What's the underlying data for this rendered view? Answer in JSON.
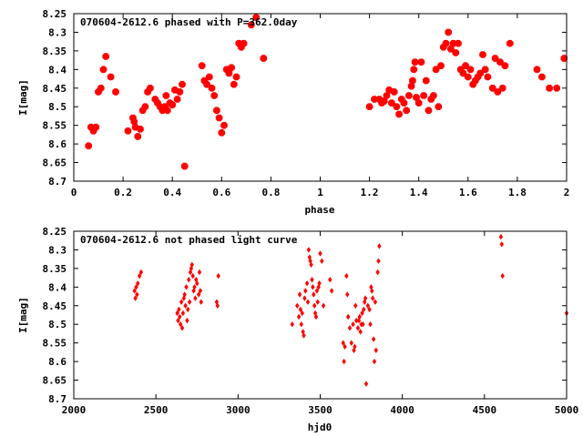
{
  "chart_data": [
    {
      "type": "scatter",
      "title": "070604-2612.6 phased with P=362.0day",
      "xlabel": "phase",
      "ylabel": "I[mag]",
      "xlim": [
        0,
        2
      ],
      "ylim": [
        8.7,
        8.25
      ],
      "y_inverted": true,
      "grid": false,
      "marker_color": "#ff0000",
      "marker_shape": "octagon",
      "xticks": [
        0,
        0.2,
        0.4,
        0.6,
        0.8,
        1,
        1.2,
        1.4,
        1.6,
        1.8,
        2
      ],
      "xtick_labels": [
        "0",
        "0.2",
        "0.4",
        "0.6",
        "0.8",
        "1",
        "1.2",
        "1.4",
        "1.6",
        "1.8",
        "2"
      ],
      "yticks": [
        8.25,
        8.3,
        8.35,
        8.4,
        8.45,
        8.5,
        8.55,
        8.6,
        8.65,
        8.7
      ],
      "ytick_labels": [
        "8.25",
        "8.3",
        "8.35",
        "8.4",
        "8.45",
        "8.5",
        "8.55",
        "8.6",
        "8.65",
        "8.7"
      ],
      "points": [
        [
          0.06,
          8.605
        ],
        [
          0.07,
          8.555
        ],
        [
          0.08,
          8.565
        ],
        [
          0.09,
          8.555
        ],
        [
          0.1,
          8.46
        ],
        [
          0.11,
          8.45
        ],
        [
          0.12,
          8.4
        ],
        [
          0.13,
          8.365
        ],
        [
          0.15,
          8.42
        ],
        [
          0.17,
          8.46
        ],
        [
          0.22,
          8.565
        ],
        [
          0.24,
          8.53
        ],
        [
          0.245,
          8.54
        ],
        [
          0.25,
          8.555
        ],
        [
          0.26,
          8.58
        ],
        [
          0.27,
          8.56
        ],
        [
          0.28,
          8.51
        ],
        [
          0.29,
          8.5
        ],
        [
          0.3,
          8.46
        ],
        [
          0.31,
          8.45
        ],
        [
          0.33,
          8.48
        ],
        [
          0.34,
          8.49
        ],
        [
          0.35,
          8.5
        ],
        [
          0.36,
          8.51
        ],
        [
          0.37,
          8.5
        ],
        [
          0.375,
          8.47
        ],
        [
          0.38,
          8.51
        ],
        [
          0.39,
          8.49
        ],
        [
          0.4,
          8.495
        ],
        [
          0.41,
          8.455
        ],
        [
          0.42,
          8.48
        ],
        [
          0.43,
          8.46
        ],
        [
          0.44,
          8.44
        ],
        [
          0.45,
          8.66
        ],
        [
          0.52,
          8.39
        ],
        [
          0.53,
          8.43
        ],
        [
          0.54,
          8.44
        ],
        [
          0.55,
          8.42
        ],
        [
          0.56,
          8.45
        ],
        [
          0.57,
          8.47
        ],
        [
          0.58,
          8.51
        ],
        [
          0.59,
          8.53
        ],
        [
          0.6,
          8.57
        ],
        [
          0.61,
          8.55
        ],
        [
          0.62,
          8.4
        ],
        [
          0.63,
          8.41
        ],
        [
          0.64,
          8.395
        ],
        [
          0.65,
          8.44
        ],
        [
          0.66,
          8.42
        ],
        [
          0.67,
          8.33
        ],
        [
          0.68,
          8.34
        ],
        [
          0.69,
          8.33
        ],
        [
          0.72,
          8.28
        ],
        [
          0.74,
          8.26
        ],
        [
          0.77,
          8.37
        ],
        [
          1.2,
          8.5
        ],
        [
          1.22,
          8.48
        ],
        [
          1.24,
          8.48
        ],
        [
          1.25,
          8.49
        ],
        [
          1.26,
          8.485
        ],
        [
          1.27,
          8.47
        ],
        [
          1.28,
          8.455
        ],
        [
          1.29,
          8.49
        ],
        [
          1.3,
          8.46
        ],
        [
          1.31,
          8.5
        ],
        [
          1.32,
          8.52
        ],
        [
          1.33,
          8.48
        ],
        [
          1.34,
          8.49
        ],
        [
          1.35,
          8.51
        ],
        [
          1.36,
          8.47
        ],
        [
          1.37,
          8.445
        ],
        [
          1.375,
          8.43
        ],
        [
          1.38,
          8.4
        ],
        [
          1.385,
          8.38
        ],
        [
          1.39,
          8.475
        ],
        [
          1.4,
          8.49
        ],
        [
          1.41,
          8.38
        ],
        [
          1.42,
          8.47
        ],
        [
          1.43,
          8.43
        ],
        [
          1.44,
          8.51
        ],
        [
          1.45,
          8.48
        ],
        [
          1.46,
          8.47
        ],
        [
          1.47,
          8.4
        ],
        [
          1.48,
          8.5
        ],
        [
          1.49,
          8.39
        ],
        [
          1.5,
          8.34
        ],
        [
          1.51,
          8.33
        ],
        [
          1.52,
          8.3
        ],
        [
          1.53,
          8.345
        ],
        [
          1.54,
          8.33
        ],
        [
          1.55,
          8.355
        ],
        [
          1.56,
          8.33
        ],
        [
          1.57,
          8.4
        ],
        [
          1.58,
          8.41
        ],
        [
          1.59,
          8.39
        ],
        [
          1.6,
          8.42
        ],
        [
          1.61,
          8.4
        ],
        [
          1.62,
          8.44
        ],
        [
          1.63,
          8.43
        ],
        [
          1.64,
          8.42
        ],
        [
          1.65,
          8.41
        ],
        [
          1.66,
          8.36
        ],
        [
          1.67,
          8.4
        ],
        [
          1.68,
          8.42
        ],
        [
          1.7,
          8.45
        ],
        [
          1.71,
          8.37
        ],
        [
          1.72,
          8.46
        ],
        [
          1.73,
          8.38
        ],
        [
          1.74,
          8.45
        ],
        [
          1.75,
          8.39
        ],
        [
          1.77,
          8.33
        ],
        [
          1.88,
          8.4
        ],
        [
          1.9,
          8.42
        ],
        [
          1.93,
          8.45
        ],
        [
          1.96,
          8.45
        ],
        [
          1.99,
          8.37
        ]
      ]
    },
    {
      "type": "scatter",
      "title": "070604-2612.6 not phased light curve",
      "xlabel": "hjd0",
      "ylabel": "I[mag]",
      "xlim": [
        2000,
        5000
      ],
      "ylim": [
        8.7,
        8.25
      ],
      "y_inverted": true,
      "grid": false,
      "marker_color": "#ff0000",
      "marker_shape": "diamond",
      "xticks": [
        2000,
        2500,
        3000,
        3500,
        4000,
        4500,
        5000
      ],
      "xtick_labels": [
        "2000",
        "2500",
        "3000",
        "3500",
        "4000",
        "4500",
        "5000"
      ],
      "yticks": [
        8.25,
        8.3,
        8.35,
        8.4,
        8.45,
        8.5,
        8.55,
        8.6,
        8.65,
        8.7
      ],
      "ytick_labels": [
        "8.25",
        "8.3",
        "8.35",
        "8.4",
        "8.45",
        "8.5",
        "8.55",
        "8.6",
        "8.65",
        "8.7"
      ],
      "points": [
        [
          2370,
          8.41
        ],
        [
          2375,
          8.43
        ],
        [
          2380,
          8.4
        ],
        [
          2385,
          8.42
        ],
        [
          2390,
          8.39
        ],
        [
          2400,
          8.37
        ],
        [
          2410,
          8.36
        ],
        [
          2630,
          8.47
        ],
        [
          2635,
          8.49
        ],
        [
          2640,
          8.46
        ],
        [
          2645,
          8.48
        ],
        [
          2650,
          8.5
        ],
        [
          2655,
          8.44
        ],
        [
          2660,
          8.51
        ],
        [
          2665,
          8.47
        ],
        [
          2670,
          8.43
        ],
        [
          2675,
          8.42
        ],
        [
          2680,
          8.45
        ],
        [
          2685,
          8.4
        ],
        [
          2690,
          8.49
        ],
        [
          2695,
          8.46
        ],
        [
          2700,
          8.38
        ],
        [
          2705,
          8.44
        ],
        [
          2710,
          8.36
        ],
        [
          2715,
          8.35
        ],
        [
          2720,
          8.34
        ],
        [
          2725,
          8.37
        ],
        [
          2730,
          8.41
        ],
        [
          2735,
          8.4
        ],
        [
          2740,
          8.43
        ],
        [
          2745,
          8.38
        ],
        [
          2750,
          8.39
        ],
        [
          2760,
          8.42
        ],
        [
          2765,
          8.36
        ],
        [
          2770,
          8.41
        ],
        [
          2775,
          8.44
        ],
        [
          2870,
          8.44
        ],
        [
          2875,
          8.45
        ],
        [
          2880,
          8.37
        ],
        [
          3330,
          8.5
        ],
        [
          3360,
          8.45
        ],
        [
          3370,
          8.48
        ],
        [
          3375,
          8.42
        ],
        [
          3380,
          8.46
        ],
        [
          3385,
          8.5
        ],
        [
          3390,
          8.47
        ],
        [
          3395,
          8.52
        ],
        [
          3400,
          8.53
        ],
        [
          3405,
          8.43
        ],
        [
          3410,
          8.41
        ],
        [
          3420,
          8.39
        ],
        [
          3425,
          8.44
        ],
        [
          3430,
          8.3
        ],
        [
          3435,
          8.32
        ],
        [
          3440,
          8.33
        ],
        [
          3445,
          8.34
        ],
        [
          3450,
          8.38
        ],
        [
          3455,
          8.4
        ],
        [
          3460,
          8.42
        ],
        [
          3465,
          8.45
        ],
        [
          3470,
          8.47
        ],
        [
          3475,
          8.48
        ],
        [
          3480,
          8.41
        ],
        [
          3485,
          8.44
        ],
        [
          3490,
          8.4
        ],
        [
          3495,
          8.39
        ],
        [
          3500,
          8.31
        ],
        [
          3510,
          8.33
        ],
        [
          3520,
          8.45
        ],
        [
          3560,
          8.38
        ],
        [
          3570,
          8.41
        ],
        [
          3640,
          8.55
        ],
        [
          3650,
          8.56
        ],
        [
          3645,
          8.6
        ],
        [
          3660,
          8.37
        ],
        [
          3665,
          8.42
        ],
        [
          3670,
          8.48
        ],
        [
          3680,
          8.51
        ],
        [
          3690,
          8.55
        ],
        [
          3700,
          8.5
        ],
        [
          3705,
          8.57
        ],
        [
          3710,
          8.56
        ],
        [
          3715,
          8.45
        ],
        [
          3720,
          8.49
        ],
        [
          3730,
          8.51
        ],
        [
          3735,
          8.49
        ],
        [
          3740,
          8.48
        ],
        [
          3745,
          8.52
        ],
        [
          3750,
          8.5
        ],
        [
          3755,
          8.47
        ],
        [
          3760,
          8.5
        ],
        [
          3765,
          8.46
        ],
        [
          3770,
          8.44
        ],
        [
          3775,
          8.43
        ],
        [
          3780,
          8.66
        ],
        [
          3790,
          8.45
        ],
        [
          3800,
          8.46
        ],
        [
          3805,
          8.5
        ],
        [
          3810,
          8.4
        ],
        [
          3815,
          8.41
        ],
        [
          3820,
          8.43
        ],
        [
          3825,
          8.54
        ],
        [
          3830,
          8.6
        ],
        [
          3835,
          8.44
        ],
        [
          3840,
          8.57
        ],
        [
          3850,
          8.36
        ],
        [
          3855,
          8.33
        ],
        [
          3860,
          8.29
        ],
        [
          4600,
          8.265
        ],
        [
          4605,
          8.285
        ],
        [
          4610,
          8.37
        ],
        [
          5000,
          8.47
        ]
      ]
    }
  ]
}
